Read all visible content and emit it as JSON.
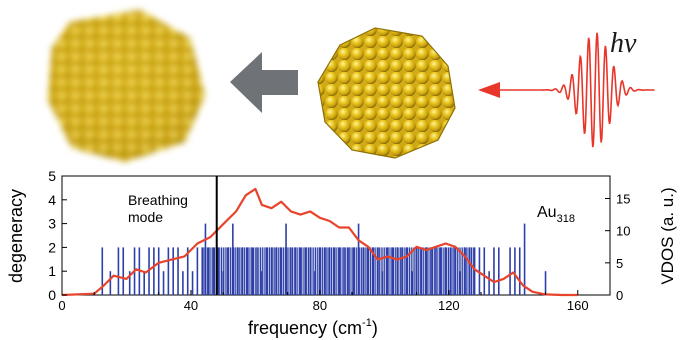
{
  "illustration": {
    "photon_label": "hv",
    "left_cluster": "blurred-gold-nanocluster",
    "right_cluster": "gold-nanocluster",
    "arrow_big": "gray-arrow-left",
    "arrow_pulse": "red-arrow-left",
    "colors": {
      "gold": "#e8c21f",
      "gold_dark": "#9a7a06",
      "pulse": "#e8362a",
      "arrow_gray": "#6f7378"
    }
  },
  "chart_data": {
    "type": "bar",
    "xlabel": "frequency (cm",
    "xlabel_sup": "-1",
    "xlabel_end": ")",
    "ylabel_left": "degeneracy",
    "ylabel_right": "VDOS (a. u.)",
    "xlim": [
      0,
      170
    ],
    "ylim_left": [
      0,
      5
    ],
    "ylim_right": [
      0,
      18.5
    ],
    "xticks": [
      0,
      40,
      80,
      120,
      160
    ],
    "yticks_left": [
      0,
      1,
      2,
      3,
      4,
      5
    ],
    "yticks_right": [
      0,
      5,
      10,
      15
    ],
    "annotation": {
      "text_line1": "Breathing",
      "text_line2": "mode",
      "x": 48
    },
    "compound": {
      "base": "Au",
      "sub": "318"
    },
    "colors": {
      "bars": "#2d3fa8",
      "vdos": "#e8432c",
      "breathing_line": "#000000"
    },
    "series": [
      {
        "kind": "bars",
        "axis": "left",
        "x": [
          12.5,
          15,
          17.5,
          19,
          21,
          22.5,
          24,
          25.5,
          27,
          28.5,
          30,
          31.5,
          33,
          34.5,
          36,
          37.5,
          39,
          40.5,
          42,
          43.5,
          44.5,
          45.5,
          47,
          48.5,
          50,
          51.5,
          53,
          54.5,
          56,
          57.5,
          59,
          60.5,
          62,
          63.5,
          65,
          66.5,
          68,
          69.5,
          71,
          72.5,
          74,
          75.5,
          77,
          78.5,
          80,
          81.5,
          83,
          84.5,
          86,
          87.5,
          89,
          90.5,
          92,
          93.5,
          95,
          96.5,
          98,
          99.5,
          101,
          102.5,
          104,
          105.5,
          107,
          108.5,
          110,
          111.5,
          113,
          114.5,
          116,
          117.5,
          119,
          120.5,
          122,
          123.5,
          125,
          126.5,
          128,
          129.5,
          131,
          132.5,
          134,
          135.5,
          139,
          140.5,
          142,
          143.5,
          150
        ],
        "values": [
          2,
          1,
          2,
          2,
          1,
          2,
          2,
          1,
          2,
          2,
          2,
          1,
          2,
          2,
          2,
          1,
          2,
          1,
          2,
          2,
          3,
          2,
          2,
          2,
          1,
          2,
          3,
          2,
          2,
          2,
          2,
          2,
          1,
          2,
          2,
          2,
          2,
          3,
          2,
          2,
          2,
          2,
          2,
          1,
          2,
          2,
          2,
          2,
          2,
          2,
          2,
          2,
          3,
          2,
          2,
          2,
          2,
          1,
          2,
          2,
          2,
          2,
          2,
          1,
          2,
          2,
          2,
          2,
          2,
          2,
          2,
          2,
          2,
          1,
          2,
          2,
          2,
          2,
          2,
          1,
          2,
          2,
          2,
          2,
          2,
          3,
          1
        ]
      },
      {
        "kind": "line",
        "axis": "right",
        "x": [
          0,
          10,
          13,
          16,
          20,
          23,
          26,
          30,
          34,
          38,
          42,
          46,
          50,
          54,
          57,
          60,
          62,
          65,
          68,
          71,
          74,
          77,
          80,
          83,
          86,
          89,
          92,
          95,
          98,
          101,
          104,
          107,
          110,
          113,
          116,
          119,
          122,
          125,
          128,
          131,
          134,
          137,
          140,
          143,
          146,
          150,
          155,
          160
        ],
        "values": [
          0,
          0.2,
          1.5,
          3,
          2.5,
          4,
          3.5,
          5,
          5.5,
          6,
          8,
          9,
          11,
          13,
          15.5,
          16.5,
          14,
          13.5,
          14.5,
          13,
          12.5,
          13,
          12,
          11.5,
          10.5,
          10.5,
          8.5,
          7.5,
          5.5,
          6,
          5.5,
          6,
          7.5,
          7,
          7.5,
          8,
          7.5,
          6,
          4,
          3,
          2,
          2.5,
          3.5,
          1.5,
          0.5,
          0.1,
          0,
          0
        ]
      }
    ]
  }
}
